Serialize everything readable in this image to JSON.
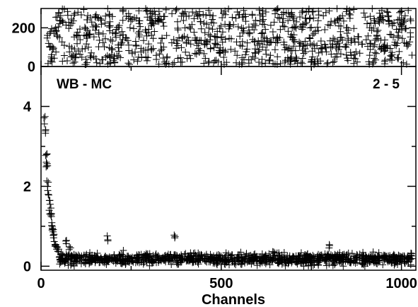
{
  "chart_data": [
    {
      "type": "scatter",
      "marker": "plus",
      "panel": "top",
      "title": "",
      "xlabel": "",
      "ylabel": "",
      "xlim": [
        0,
        1040
      ],
      "ylim": [
        0,
        300
      ],
      "ytick_labels": [
        "0",
        "200"
      ],
      "ytick_values": [
        0,
        200
      ],
      "grid": false,
      "description_values": "dense uniform scatter of points spanning roughly 10–300 across all channels",
      "series": [
        {
          "sampled_uniform": {
            "x_range": [
              15,
              1030
            ],
            "y_range": [
              10,
              300
            ],
            "count": 900
          }
        }
      ]
    },
    {
      "type": "scatter",
      "marker": "plus",
      "panel": "bottom",
      "title": "",
      "xlabel": "Channels",
      "ylabel": "",
      "xlim": [
        0,
        1040
      ],
      "ylim": [
        -0.1,
        5.0
      ],
      "xtick_labels": [
        "0",
        "500",
        "1000"
      ],
      "xtick_values": [
        0,
        500,
        1000
      ],
      "ytick_labels": [
        "0",
        "2",
        "4"
      ],
      "ytick_values": [
        0,
        2,
        4
      ],
      "grid": false,
      "annotations": [
        {
          "text": "WB - MC",
          "position": "top-left"
        },
        {
          "text": "2 - 5",
          "position": "top-right"
        }
      ],
      "series": [
        {
          "peak_points": [
            [
              10,
              3.7
            ],
            [
              12,
              3.2
            ],
            [
              14,
              2.8
            ],
            [
              16,
              2.6
            ],
            [
              18,
              2.3
            ],
            [
              20,
              2.0
            ],
            [
              22,
              1.7
            ],
            [
              24,
              1.5
            ],
            [
              26,
              1.35
            ],
            [
              28,
              1.2
            ],
            [
              30,
              1.1
            ],
            [
              32,
              0.95
            ],
            [
              34,
              0.85
            ],
            [
              36,
              0.75
            ],
            [
              38,
              0.6
            ],
            [
              40,
              0.5
            ],
            [
              44,
              0.45
            ],
            [
              48,
              0.4
            ],
            [
              55,
              0.3
            ],
            [
              60,
              0.3
            ],
            [
              70,
              0.6
            ],
            [
              80,
              0.45
            ],
            [
              185,
              0.7
            ],
            [
              370,
              0.75
            ],
            [
              800,
              0.5
            ]
          ],
          "baseline": {
            "x_range": [
              50,
              1030
            ],
            "mean": 0.18,
            "spread": 0.15,
            "count": 1100
          }
        }
      ]
    }
  ]
}
